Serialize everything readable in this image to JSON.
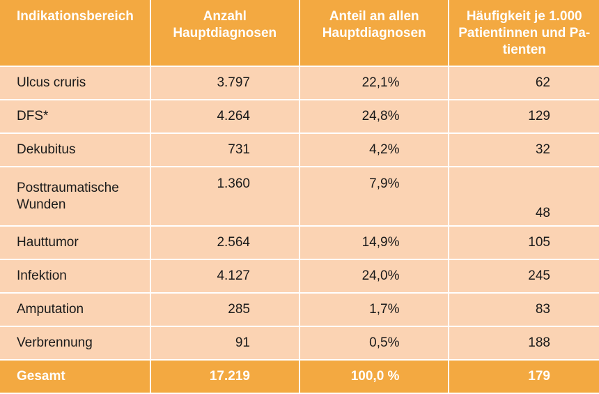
{
  "header": {
    "col1": "Indikationsbereich",
    "col2_line1": "Anzahl",
    "col2_line2": "Hauptdiagnosen",
    "col3_line1": "Anteil an allen",
    "col3_line2": "Hauptdiagnosen",
    "col4_line1": "Häufigkeit je 1.000",
    "col4_line2": "Patientinnen und Pa-",
    "col4_line3": "tienten"
  },
  "rows": [
    {
      "name_line1": "Ulcus cruris",
      "name_line2": "",
      "count": "3.797",
      "share": "22,1%",
      "freq": "62"
    },
    {
      "name_line1": "DFS*",
      "name_line2": "",
      "count": "4.264",
      "share": "24,8%",
      "freq": "129"
    },
    {
      "name_line1": "Dekubitus",
      "name_line2": "",
      "count": "731",
      "share": "4,2%",
      "freq": "32"
    },
    {
      "name_line1": "Posttraumatische",
      "name_line2": "Wunden",
      "count": "1.360",
      "share": "7,9%",
      "freq": "48"
    },
    {
      "name_line1": "Hauttumor",
      "name_line2": "",
      "count": "2.564",
      "share": "14,9%",
      "freq": "105"
    },
    {
      "name_line1": "Infektion",
      "name_line2": "",
      "count": "4.127",
      "share": "24,0%",
      "freq": "245"
    },
    {
      "name_line1": "Amputation",
      "name_line2": "",
      "count": "285",
      "share": "1,7%",
      "freq": "83"
    },
    {
      "name_line1": "Verbrennung",
      "name_line2": "",
      "count": "91",
      "share": "0,5%",
      "freq": "188"
    }
  ],
  "total": {
    "name": "Gesamt",
    "count": "17.219",
    "share": "100,0 %",
    "freq": "179"
  },
  "colors": {
    "header_bg": "#f3a941",
    "row_bg": "#fbd3b3",
    "header_text": "#ffffff"
  }
}
